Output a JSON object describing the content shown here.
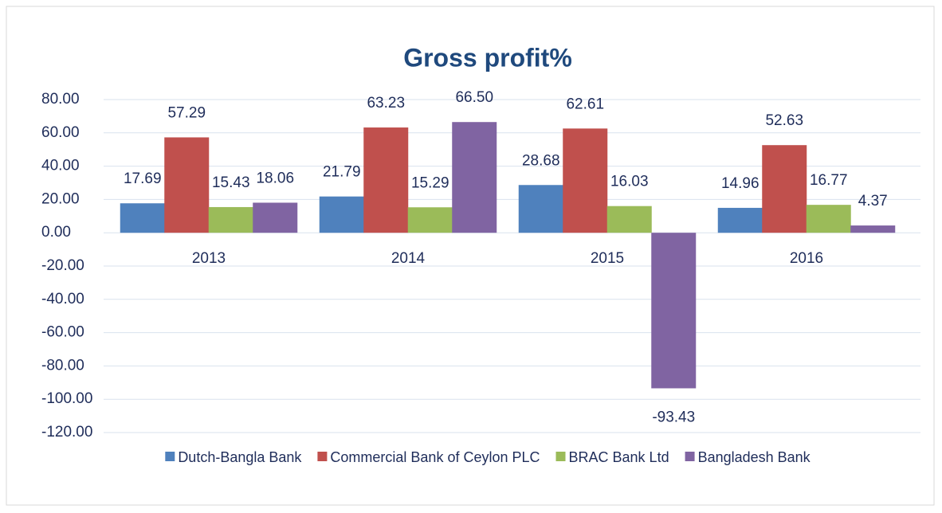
{
  "chart_data": {
    "type": "bar",
    "title": "Gross profit%",
    "categories": [
      "2013",
      "2014",
      "2015",
      "2016"
    ],
    "series": [
      {
        "name": "Dutch-Bangla Bank",
        "color": "#4f81bd",
        "values": [
          17.69,
          21.79,
          28.68,
          14.96
        ],
        "value_labels": [
          "17.69",
          "21.79",
          "28.68",
          "14.96"
        ]
      },
      {
        "name": "Commercial Bank of Ceylon PLC",
        "color": "#c0504d",
        "values": [
          57.29,
          63.23,
          62.61,
          52.63
        ],
        "value_labels": [
          "57.29",
          "63.23",
          "62.61",
          "52.63"
        ]
      },
      {
        "name": "BRAC Bank Ltd",
        "color": "#9bbb59",
        "values": [
          15.43,
          15.29,
          16.03,
          16.77
        ],
        "value_labels": [
          "15.43",
          "15.29",
          "16.03",
          "16.77"
        ]
      },
      {
        "name": "Bangladesh Bank",
        "color": "#8064a2",
        "values": [
          18.06,
          66.5,
          -93.43,
          4.37
        ],
        "value_labels": [
          "18.06",
          "66.50",
          "-93.43",
          "4.37"
        ]
      }
    ],
    "ylim": [
      -120,
      80
    ],
    "yticks": [
      {
        "value": -120,
        "label": "-120.00"
      },
      {
        "value": -100,
        "label": "-100.00"
      },
      {
        "value": -80,
        "label": "-80.00"
      },
      {
        "value": -60,
        "label": "-60.00"
      },
      {
        "value": -40,
        "label": "-40.00"
      },
      {
        "value": -20,
        "label": "-20.00"
      },
      {
        "value": 0,
        "label": "0.00"
      },
      {
        "value": 20,
        "label": "20.00"
      },
      {
        "value": 40,
        "label": "40.00"
      },
      {
        "value": 60,
        "label": "60.00"
      },
      {
        "value": 80,
        "label": "80.00"
      }
    ],
    "grid": true,
    "legend": "bottom"
  }
}
